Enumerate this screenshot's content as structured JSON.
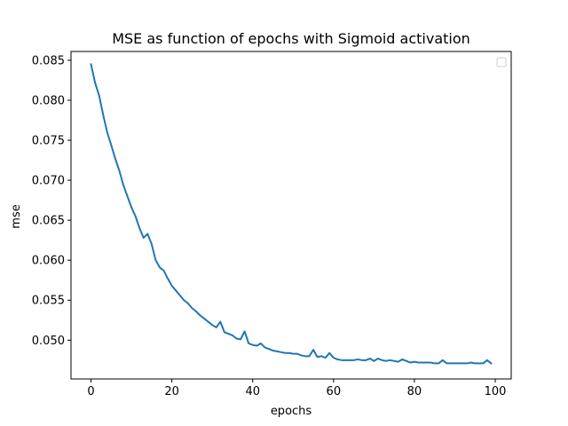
{
  "chart_data": {
    "type": "line",
    "title": "MSE as function of epochs with Sigmoid activation",
    "xlabel": "epochs",
    "ylabel": "mse",
    "xlim": [
      -4.95,
      103.95
    ],
    "ylim": [
      0.04515,
      0.0861
    ],
    "xticks": [
      0,
      20,
      40,
      60,
      80,
      100
    ],
    "yticks": [
      0.05,
      0.055,
      0.06,
      0.065,
      0.07,
      0.075,
      0.08,
      0.085
    ],
    "ytick_labels": [
      "0.050",
      "0.055",
      "0.060",
      "0.065",
      "0.070",
      "0.075",
      "0.080",
      "0.085"
    ],
    "xtick_labels": [
      "0",
      "20",
      "40",
      "60",
      "80",
      "100"
    ],
    "grid": false,
    "legend": "top-right",
    "series": [
      {
        "name": "",
        "color": "#1f77b4",
        "x": [
          0,
          1,
          2,
          3,
          4,
          5,
          6,
          7,
          8,
          9,
          10,
          11,
          12,
          13,
          14,
          15,
          16,
          17,
          18,
          19,
          20,
          21,
          22,
          23,
          24,
          25,
          26,
          27,
          28,
          29,
          30,
          31,
          32,
          33,
          34,
          35,
          36,
          37,
          38,
          39,
          40,
          41,
          42,
          43,
          44,
          45,
          46,
          47,
          48,
          49,
          50,
          51,
          52,
          53,
          54,
          55,
          56,
          57,
          58,
          59,
          60,
          61,
          62,
          63,
          64,
          65,
          66,
          67,
          68,
          69,
          70,
          71,
          72,
          73,
          74,
          75,
          76,
          77,
          78,
          79,
          80,
          81,
          82,
          83,
          84,
          85,
          86,
          87,
          88,
          89,
          90,
          91,
          92,
          93,
          94,
          95,
          96,
          97,
          98,
          99
        ],
        "values": [
          0.0845,
          0.0822,
          0.0806,
          0.0782,
          0.076,
          0.0744,
          0.0727,
          0.0712,
          0.0694,
          0.068,
          0.0666,
          0.0655,
          0.064,
          0.0628,
          0.0633,
          0.062,
          0.06,
          0.0591,
          0.0587,
          0.0577,
          0.0568,
          0.0562,
          0.0556,
          0.055,
          0.0546,
          0.054,
          0.0536,
          0.0531,
          0.0527,
          0.0523,
          0.0519,
          0.0516,
          0.0523,
          0.051,
          0.0508,
          0.0506,
          0.0502,
          0.0501,
          0.0511,
          0.0496,
          0.0494,
          0.0493,
          0.0496,
          0.0491,
          0.0489,
          0.0487,
          0.0486,
          0.0485,
          0.0484,
          0.0484,
          0.0483,
          0.0483,
          0.0481,
          0.048,
          0.048,
          0.0488,
          0.0479,
          0.048,
          0.0478,
          0.0484,
          0.0478,
          0.0476,
          0.0475,
          0.0475,
          0.0475,
          0.0475,
          0.0476,
          0.0475,
          0.0475,
          0.0477,
          0.0474,
          0.0477,
          0.0475,
          0.0474,
          0.0475,
          0.0474,
          0.0473,
          0.0476,
          0.0474,
          0.0472,
          0.0473,
          0.0472,
          0.0472,
          0.0472,
          0.0472,
          0.0471,
          0.0471,
          0.0475,
          0.0471,
          0.0471,
          0.0471,
          0.0471,
          0.0471,
          0.0471,
          0.0472,
          0.0471,
          0.0471,
          0.0471,
          0.0475,
          0.0471
        ]
      }
    ]
  }
}
